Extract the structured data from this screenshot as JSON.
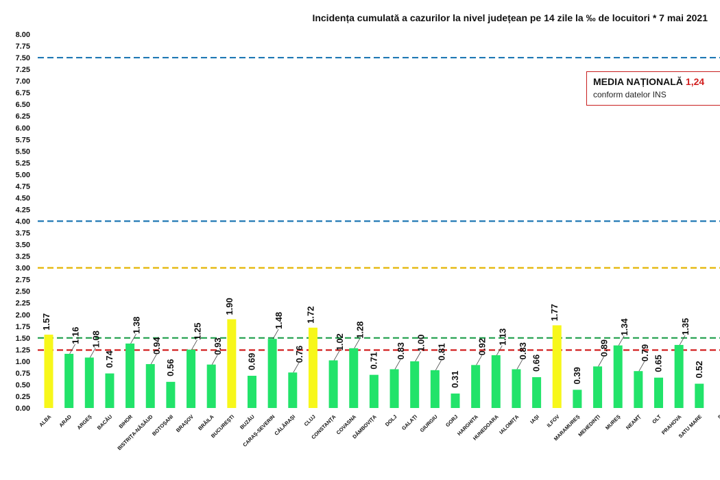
{
  "chart_data": {
    "type": "bar",
    "title": "Incidența cumulată a cazurilor la nivel județean pe 14 zile la ‰ de locuitori *  7 mai 2021",
    "xlabel": "",
    "ylabel": "",
    "ylim": [
      0,
      8
    ],
    "ytick_step": 0.25,
    "yticks": [
      "0.00",
      "0.25",
      "0.50",
      "0.75",
      "1.00",
      "1.25",
      "1.50",
      "1.75",
      "2.00",
      "2.25",
      "2.50",
      "2.75",
      "3.00",
      "3.25",
      "3.50",
      "3.75",
      "4.00",
      "4.25",
      "4.50",
      "4.75",
      "5.00",
      "5.25",
      "5.50",
      "5.75",
      "6.00",
      "6.25",
      "6.50",
      "6.75",
      "7.00",
      "7.25",
      "7.50",
      "7.75",
      "8.00"
    ],
    "categories": [
      "ALBA",
      "ARAD",
      "ARGEȘ",
      "BACĂU",
      "BIHOR",
      "BISTRIȚA-NĂSĂUD",
      "BOTOȘANI",
      "BRAȘOV",
      "BRĂILA",
      "BUCUREȘTI",
      "BUZĂU",
      "CARAȘ-SEVERIN",
      "CĂLĂRAȘI",
      "CLUJ",
      "CONSTANȚA",
      "COVASNA",
      "DÂMBOVIȚA",
      "DOLJ",
      "GALAȚI",
      "GIURGIU",
      "GORJ",
      "HARGHITA",
      "HUNEDOARA",
      "IALOMIȚA",
      "IAȘI",
      "ILFOV",
      "MARAMUREȘ",
      "MEHEDINȚI",
      "MUREȘ",
      "NEAMȚ",
      "OLT",
      "PRAHOVA",
      "SATU MARE",
      "S"
    ],
    "values": [
      1.57,
      1.16,
      1.08,
      0.74,
      1.38,
      0.94,
      0.56,
      1.25,
      0.93,
      1.9,
      0.69,
      1.48,
      0.76,
      1.72,
      1.02,
      1.28,
      0.71,
      0.83,
      1.0,
      0.81,
      0.31,
      0.92,
      1.13,
      0.83,
      0.66,
      1.77,
      0.39,
      0.89,
      1.34,
      0.79,
      0.65,
      1.35,
      0.52,
      null
    ],
    "data_labels": [
      "1.57",
      "1.16",
      "1.08",
      "0.74",
      "1.38",
      "0.94",
      "0.56",
      "1.25",
      "0.93",
      "1.90",
      "0.69",
      "1.48",
      "0.76",
      "1.72",
      "1.02",
      "1.28",
      "0.71",
      "0.83",
      "1.00",
      "0.81",
      "0.31",
      "0.92",
      "1.13",
      "0.83",
      "0.66",
      "1.77",
      "0.39",
      "0.89",
      "1.34",
      "0.79",
      "0.65",
      "1.35",
      "0.52",
      ""
    ],
    "highlighted": [
      "ALBA",
      "BUCUREȘTI",
      "CLUJ",
      "ILFOV"
    ],
    "colors": {
      "bar": "#22e36a",
      "highlight": "#f7f71a"
    },
    "thresholds": [
      {
        "value": 7.5,
        "color": "#1f78b4"
      },
      {
        "value": 4.0,
        "color": "#1f78b4"
      },
      {
        "value": 3.0,
        "color": "#e3b400"
      },
      {
        "value": 1.5,
        "color": "#1e9e4a"
      },
      {
        "value": 1.24,
        "color": "#d21f1f"
      }
    ],
    "grid": false,
    "legend": {
      "position": "top-right",
      "title": "MEDIA NAȚIONALĂ",
      "value": "1,24",
      "subtitle": "conform datelor INS"
    }
  }
}
